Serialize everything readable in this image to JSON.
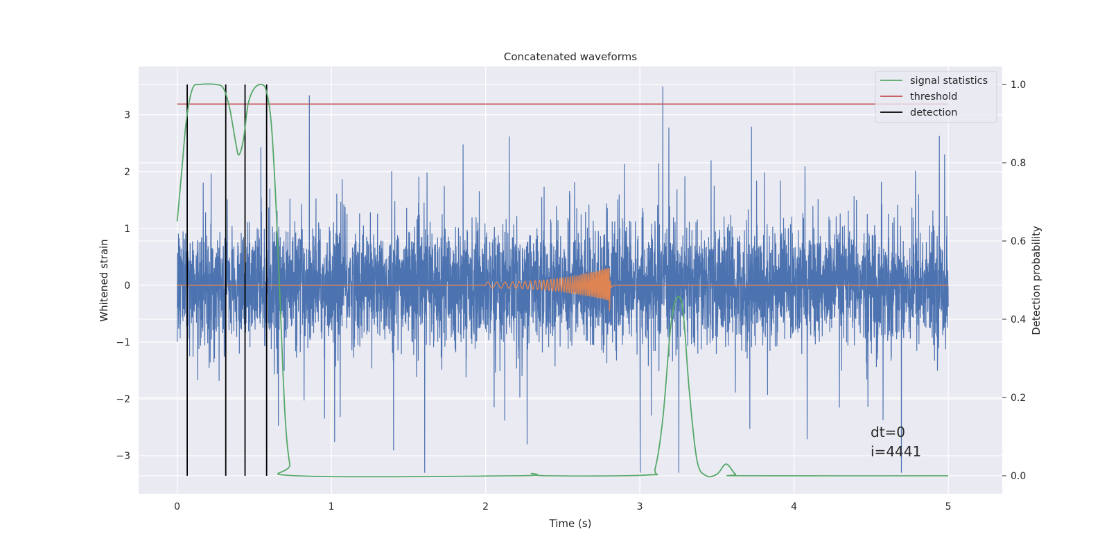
{
  "chart_data": {
    "type": "line",
    "title": "Concatenated waveforms",
    "xlabel": "Time (s)",
    "ylabel": "Whitened strain",
    "y2label": "Detection probability",
    "xlim": [
      -0.25,
      5.35
    ],
    "ylim": [
      -3.67,
      3.85
    ],
    "y2lim": [
      -0.046,
      1.046
    ],
    "xticks": [
      0,
      1,
      2,
      3,
      4,
      5
    ],
    "xtick_labels": [
      "0",
      "1",
      "2",
      "3",
      "4",
      "5"
    ],
    "yticks": [
      -3,
      -2,
      -1,
      0,
      1,
      2,
      3
    ],
    "ytick_labels": [
      "−3",
      "−2",
      "−1",
      "0",
      "1",
      "2",
      "3"
    ],
    "y2ticks": [
      0.0,
      0.2,
      0.4,
      0.6,
      0.8,
      1.0
    ],
    "y2tick_labels": [
      "0.0",
      "0.2",
      "0.4",
      "0.6",
      "0.8",
      "1.0"
    ],
    "grid": true,
    "legend_position": "top-right",
    "colors": {
      "background": "#eaeaf2",
      "grid": "#ffffff",
      "strain": "#4c72b0",
      "injection": "#dd8452",
      "statistics": "#55a868",
      "threshold": "#c44e52",
      "detection": "#000000"
    },
    "legend": [
      {
        "label": "signal statistics",
        "color": "#55a868"
      },
      {
        "label": "threshold",
        "color": "#c44e52"
      },
      {
        "label": "detection",
        "color": "#000000"
      }
    ],
    "strain_noise": {
      "x_range": [
        0,
        5
      ],
      "typical_range": [
        -0.8,
        0.8
      ],
      "max": 3.5,
      "min": -3.3
    },
    "injection_chirp": {
      "t_start": 2.0,
      "t_merger": 2.8,
      "end_time": 2.83,
      "peak_amplitude_pos": 0.3,
      "peak_amplitude_neg": -0.45
    },
    "threshold_value": 0.95,
    "threshold_x_range": [
      0,
      5
    ],
    "statistics_points": [
      {
        "x": 0.0,
        "y": 0.65
      },
      {
        "x": 0.03,
        "y": 0.78
      },
      {
        "x": 0.06,
        "y": 0.91
      },
      {
        "x": 0.1,
        "y": 0.99
      },
      {
        "x": 0.15,
        "y": 1.0
      },
      {
        "x": 0.25,
        "y": 1.0
      },
      {
        "x": 0.3,
        "y": 0.99
      },
      {
        "x": 0.34,
        "y": 0.94
      },
      {
        "x": 0.38,
        "y": 0.85
      },
      {
        "x": 0.4,
        "y": 0.82
      },
      {
        "x": 0.43,
        "y": 0.86
      },
      {
        "x": 0.46,
        "y": 0.95
      },
      {
        "x": 0.5,
        "y": 0.99
      },
      {
        "x": 0.55,
        "y": 1.0
      },
      {
        "x": 0.58,
        "y": 0.98
      },
      {
        "x": 0.61,
        "y": 0.9
      },
      {
        "x": 0.64,
        "y": 0.7
      },
      {
        "x": 0.67,
        "y": 0.42
      },
      {
        "x": 0.7,
        "y": 0.15
      },
      {
        "x": 0.73,
        "y": 0.03
      },
      {
        "x": 0.77,
        "y": 0.0
      },
      {
        "x": 2.2,
        "y": 0.0
      },
      {
        "x": 2.3,
        "y": 0.006
      },
      {
        "x": 2.4,
        "y": 0.0
      },
      {
        "x": 3.05,
        "y": 0.002
      },
      {
        "x": 3.1,
        "y": 0.02
      },
      {
        "x": 3.15,
        "y": 0.15
      },
      {
        "x": 3.2,
        "y": 0.38
      },
      {
        "x": 3.24,
        "y": 0.455
      },
      {
        "x": 3.28,
        "y": 0.42
      },
      {
        "x": 3.32,
        "y": 0.22
      },
      {
        "x": 3.37,
        "y": 0.04
      },
      {
        "x": 3.43,
        "y": 0.0
      },
      {
        "x": 3.5,
        "y": 0.004
      },
      {
        "x": 3.56,
        "y": 0.03
      },
      {
        "x": 3.62,
        "y": 0.004
      },
      {
        "x": 3.68,
        "y": 0.0
      },
      {
        "x": 5.0,
        "y": 0.0
      }
    ],
    "detections_x": [
      0.065,
      0.315,
      0.44,
      0.58
    ],
    "detection_y_range": [
      0.0,
      1.0
    ],
    "annotations": [
      "dt=0",
      "i=4441"
    ],
    "annotation_anchor": {
      "x": 4.5,
      "y": -2.45
    }
  }
}
